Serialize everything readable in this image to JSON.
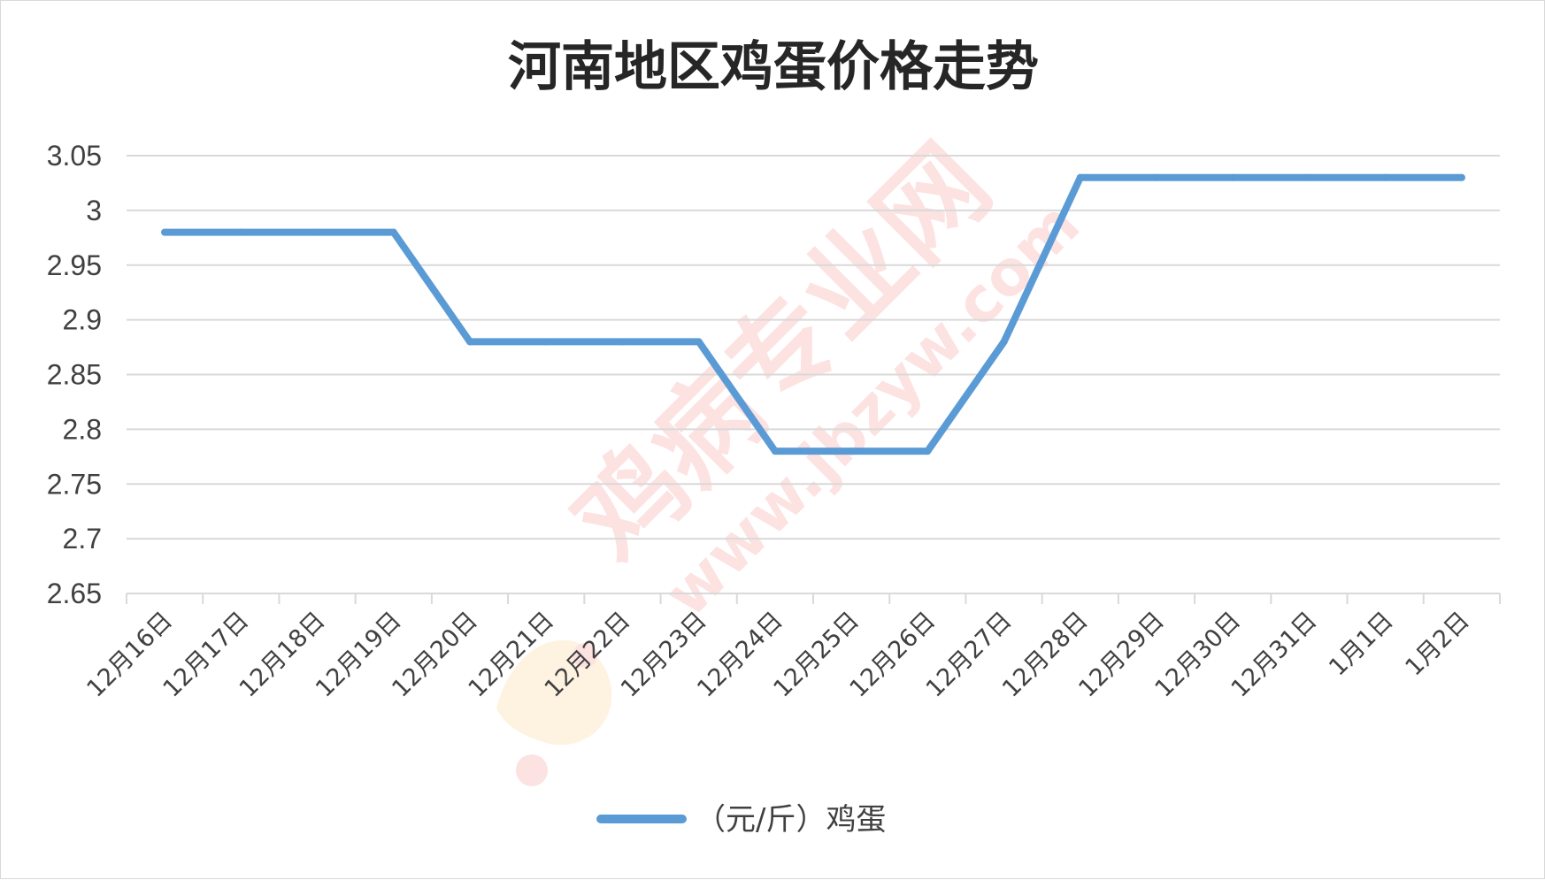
{
  "chart_data": {
    "type": "line",
    "title": "河南地区鸡蛋价格走势",
    "categories": [
      "12月16日",
      "12月17日",
      "12月18日",
      "12月19日",
      "12月20日",
      "12月21日",
      "12月22日",
      "12月23日",
      "12月24日",
      "12月25日",
      "12月26日",
      "12月27日",
      "12月28日",
      "12月29日",
      "12月30日",
      "12月31日",
      "1月1日",
      "1月2日"
    ],
    "series": [
      {
        "name": "（元/斤）鸡蛋",
        "values": [
          2.98,
          2.98,
          2.98,
          2.98,
          2.88,
          2.88,
          2.88,
          2.88,
          2.78,
          2.78,
          2.78,
          2.88,
          3.03,
          3.03,
          3.03,
          3.03,
          3.03,
          3.03
        ],
        "color": "#5b9bd5"
      }
    ],
    "ylim": [
      2.65,
      3.05
    ],
    "yticks": [
      "3.05",
      "3",
      "2.95",
      "2.9",
      "2.85",
      "2.8",
      "2.75",
      "2.7",
      "2.65"
    ],
    "grid": true,
    "legend_position": "bottom"
  },
  "watermark": {
    "text_main": "鸡病专业网",
    "text_url": "www.jbzyw.com",
    "color": "#e8463f"
  }
}
